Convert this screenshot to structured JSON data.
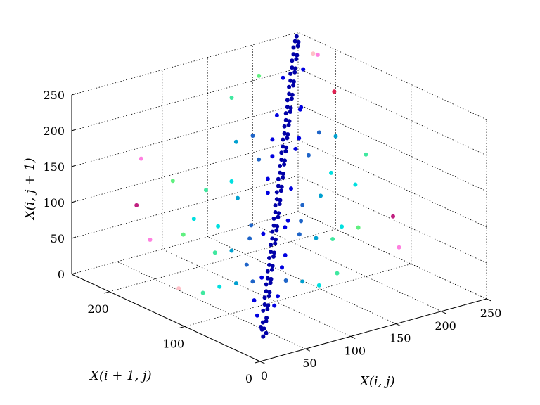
{
  "chart_data": {
    "type": "scatter3d",
    "title": "",
    "xlabel": "X(i, j)",
    "ylabel": "X(i + 1, j)",
    "zlabel": "X(i, j + 1)",
    "xlim": [
      0,
      250
    ],
    "ylim": [
      0,
      250
    ],
    "zlim": [
      0,
      250
    ],
    "xticks": [
      "0",
      "50",
      "100",
      "150",
      "200",
      "250"
    ],
    "yticks": [
      "0",
      "100",
      "200"
    ],
    "zticks": [
      "0",
      "50",
      "100",
      "150",
      "200",
      "250"
    ],
    "grid": true,
    "colormap": "jet (point color by density, dark blue = most points)",
    "series": [
      {
        "color": "#0000a8",
        "points": [
          [
            20,
            20,
            18
          ],
          [
            22,
            24,
            25
          ],
          [
            25,
            22,
            20
          ],
          [
            28,
            30,
            30
          ],
          [
            30,
            28,
            32
          ],
          [
            26,
            26,
            24
          ],
          [
            24,
            28,
            26
          ],
          [
            32,
            30,
            35
          ],
          [
            35,
            38,
            40
          ],
          [
            38,
            36,
            42
          ],
          [
            40,
            42,
            45
          ],
          [
            42,
            40,
            44
          ],
          [
            45,
            48,
            50
          ],
          [
            48,
            46,
            52
          ],
          [
            50,
            52,
            55
          ],
          [
            52,
            50,
            54
          ],
          [
            55,
            58,
            60
          ],
          [
            58,
            56,
            62
          ],
          [
            60,
            62,
            65
          ],
          [
            62,
            60,
            64
          ],
          [
            65,
            68,
            70
          ],
          [
            68,
            66,
            72
          ],
          [
            70,
            72,
            75
          ],
          [
            72,
            70,
            74
          ],
          [
            75,
            78,
            80
          ],
          [
            78,
            76,
            82
          ],
          [
            80,
            82,
            85
          ],
          [
            82,
            80,
            84
          ],
          [
            85,
            88,
            90
          ],
          [
            88,
            86,
            92
          ],
          [
            90,
            92,
            95
          ],
          [
            92,
            90,
            94
          ],
          [
            95,
            98,
            100
          ],
          [
            98,
            96,
            102
          ],
          [
            100,
            102,
            105
          ],
          [
            102,
            100,
            104
          ],
          [
            105,
            108,
            110
          ],
          [
            108,
            106,
            112
          ],
          [
            110,
            112,
            115
          ],
          [
            112,
            110,
            114
          ],
          [
            115,
            118,
            120
          ],
          [
            118,
            116,
            122
          ],
          [
            120,
            122,
            125
          ],
          [
            122,
            120,
            124
          ],
          [
            125,
            128,
            130
          ],
          [
            128,
            126,
            132
          ],
          [
            130,
            132,
            135
          ],
          [
            132,
            130,
            134
          ],
          [
            135,
            138,
            140
          ],
          [
            138,
            136,
            142
          ],
          [
            140,
            142,
            145
          ],
          [
            142,
            140,
            144
          ],
          [
            145,
            148,
            150
          ],
          [
            148,
            146,
            152
          ],
          [
            150,
            152,
            155
          ],
          [
            152,
            150,
            154
          ],
          [
            155,
            158,
            160
          ],
          [
            158,
            156,
            162
          ],
          [
            160,
            162,
            165
          ],
          [
            162,
            160,
            164
          ],
          [
            165,
            168,
            170
          ],
          [
            168,
            166,
            172
          ],
          [
            170,
            172,
            175
          ],
          [
            172,
            170,
            174
          ],
          [
            175,
            178,
            180
          ],
          [
            178,
            176,
            182
          ],
          [
            180,
            182,
            185
          ],
          [
            182,
            180,
            184
          ],
          [
            185,
            188,
            190
          ],
          [
            188,
            186,
            192
          ],
          [
            190,
            192,
            195
          ],
          [
            192,
            190,
            194
          ],
          [
            195,
            198,
            200
          ],
          [
            198,
            196,
            202
          ],
          [
            200,
            202,
            205
          ],
          [
            202,
            200,
            204
          ],
          [
            205,
            208,
            210
          ],
          [
            208,
            206,
            212
          ],
          [
            210,
            212,
            215
          ],
          [
            212,
            210,
            214
          ],
          [
            215,
            218,
            220
          ],
          [
            218,
            216,
            222
          ],
          [
            220,
            222,
            225
          ],
          [
            222,
            220,
            224
          ],
          [
            225,
            228,
            230
          ],
          [
            228,
            226,
            232
          ],
          [
            230,
            232,
            235
          ],
          [
            232,
            230,
            234
          ],
          [
            235,
            238,
            240
          ],
          [
            238,
            236,
            242
          ],
          [
            240,
            242,
            245
          ],
          [
            242,
            240,
            244
          ],
          [
            245,
            246,
            248
          ]
        ]
      },
      {
        "color": "#0000e0",
        "points": [
          [
            30,
            40,
            34
          ],
          [
            44,
            34,
            46
          ],
          [
            60,
            70,
            62
          ],
          [
            74,
            60,
            76
          ],
          [
            90,
            104,
            96
          ],
          [
            104,
            92,
            106
          ],
          [
            120,
            134,
            128
          ],
          [
            134,
            120,
            136
          ],
          [
            150,
            164,
            154
          ],
          [
            164,
            150,
            166
          ],
          [
            180,
            194,
            186
          ],
          [
            194,
            180,
            196
          ],
          [
            210,
            222,
            214
          ],
          [
            224,
            212,
            226
          ],
          [
            40,
            56,
            44
          ],
          [
            86,
            70,
            84
          ],
          [
            130,
            146,
            138
          ],
          [
            176,
            160,
            172
          ],
          [
            56,
            44,
            50
          ],
          [
            114,
            100,
            108
          ],
          [
            160,
            176,
            168
          ],
          [
            200,
            186,
            194
          ]
        ]
      },
      {
        "color": "#1e64c8",
        "points": [
          [
            50,
            70,
            60
          ],
          [
            70,
            50,
            64
          ],
          [
            90,
            120,
            100
          ],
          [
            120,
            90,
            110
          ],
          [
            140,
            170,
            150
          ],
          [
            170,
            140,
            160
          ],
          [
            60,
            90,
            70
          ],
          [
            110,
            80,
            100
          ],
          [
            150,
            190,
            170
          ],
          [
            190,
            150,
            180
          ],
          [
            80,
            110,
            90
          ],
          [
            130,
            100,
            124
          ]
        ]
      },
      {
        "color": "#00a0d0",
        "points": [
          [
            40,
            80,
            56
          ],
          [
            80,
            40,
            64
          ],
          [
            100,
            150,
            120
          ],
          [
            150,
            100,
            130
          ],
          [
            60,
            110,
            80
          ],
          [
            120,
            70,
            96
          ],
          [
            140,
            200,
            160
          ],
          [
            200,
            140,
            176
          ]
        ]
      },
      {
        "color": "#00e0e0",
        "points": [
          [
            30,
            90,
            50
          ],
          [
            90,
            30,
            60
          ],
          [
            110,
            170,
            130
          ],
          [
            170,
            110,
            150
          ],
          [
            70,
            140,
            96
          ],
          [
            140,
            60,
            110
          ],
          [
            60,
            160,
            100
          ],
          [
            180,
            90,
            140
          ]
        ]
      },
      {
        "color": "#40e8a0",
        "points": [
          [
            50,
            120,
            76
          ],
          [
            130,
            60,
            96
          ],
          [
            90,
            180,
            120
          ],
          [
            200,
            100,
            170
          ],
          [
            20,
            100,
            40
          ],
          [
            110,
            30,
            70
          ],
          [
            160,
            230,
            200
          ]
        ]
      },
      {
        "color": "#60f080",
        "points": [
          [
            40,
            150,
            90
          ],
          [
            150,
            50,
            110
          ],
          [
            190,
            230,
            220
          ],
          [
            70,
            200,
            130
          ]
        ]
      },
      {
        "color": "#ff80e0",
        "points": [
          [
            20,
            170,
            80
          ],
          [
            170,
            20,
            90
          ],
          [
            230,
            200,
            250
          ],
          [
            60,
            230,
            150
          ]
        ]
      },
      {
        "color": "#ffc0c8",
        "points": [
          [
            10,
            120,
            40
          ],
          [
            250,
            230,
            230
          ]
        ]
      },
      {
        "color": "#c02080",
        "points": [
          [
            30,
            200,
            110
          ],
          [
            180,
            40,
            120
          ]
        ]
      },
      {
        "color": "#e02050",
        "points": [
          [
            240,
            190,
            200
          ]
        ]
      }
    ]
  }
}
